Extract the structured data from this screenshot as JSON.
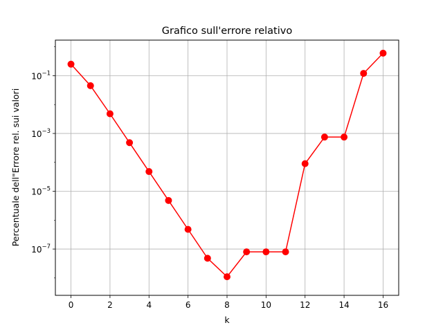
{
  "chart_data": {
    "type": "line",
    "title": "Grafico sull'errore relativo",
    "xlabel": "k",
    "ylabel": "Percentuale dell\"Errore rel. sui valori",
    "xscale": "linear",
    "yscale": "log",
    "xlim": [
      -0.8,
      16.8
    ],
    "ylim": [
      2.5e-09,
      1.7
    ],
    "grid": true,
    "xticks": [
      0,
      2,
      4,
      6,
      8,
      10,
      12,
      14,
      16
    ],
    "yticks": [
      {
        "value": 0.1,
        "base": "10",
        "exp": "−1"
      },
      {
        "value": 0.001,
        "base": "10",
        "exp": "−3"
      },
      {
        "value": 1e-05,
        "base": "10",
        "exp": "−5"
      },
      {
        "value": 1e-07,
        "base": "10",
        "exp": "−7"
      }
    ],
    "color": "#ff0000",
    "marker": "circle",
    "x": [
      0,
      1,
      2,
      3,
      4,
      5,
      6,
      7,
      8,
      9,
      10,
      11,
      12,
      13,
      14,
      15,
      16
    ],
    "y": [
      0.25,
      0.045,
      0.0048,
      0.00048,
      4.8e-05,
      4.8e-06,
      4.8e-07,
      4.8e-08,
      1.1e-08,
      8e-08,
      8e-08,
      8e-08,
      9e-05,
      0.00075,
      0.00075,
      0.12,
      0.6
    ]
  }
}
